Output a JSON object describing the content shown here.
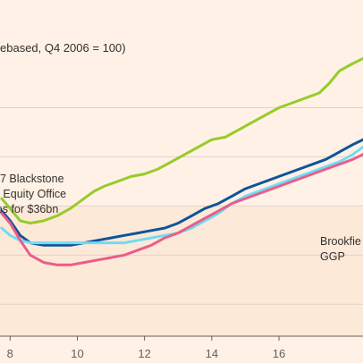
{
  "chart_data": {
    "type": "line",
    "subtitle": "ebased, Q4 2006 = 100)",
    "x_ticks": [
      10,
      12,
      14,
      16
    ],
    "x_ticks_partial": [
      8
    ],
    "xlim": [
      7.7,
      18.5
    ],
    "ylim": [
      47,
      162
    ],
    "grid": true,
    "y_gridlines": [
      60,
      80,
      100,
      120,
      140
    ],
    "shaded_band": {
      "from": 47,
      "to": 100,
      "color": "#fde9d8"
    },
    "annotations": [
      {
        "lines": [
          "07 Blackstone",
          "e Equity Office",
          "ies for $36bn"
        ]
      },
      {
        "lines": [
          "Brookfie",
          "GGP"
        ]
      }
    ],
    "series": [
      {
        "color": "#96cc28",
        "x": [
          7.75,
          8,
          8.3,
          8.6,
          9,
          9.4,
          9.8,
          10.2,
          10.5,
          10.8,
          11.2,
          11.6,
          12,
          12.4,
          12.8,
          13.2,
          13.6,
          14,
          14.4,
          14.8,
          15.2,
          15.6,
          16,
          16.4,
          16.8,
          17.2,
          17.5,
          17.8,
          18.2,
          18.5
        ],
        "y": [
          103,
          99,
          94,
          93,
          94,
          96,
          99,
          103,
          106,
          108,
          110,
          112,
          113,
          115,
          118,
          121,
          124,
          127,
          128,
          131,
          134,
          137,
          140,
          142,
          144,
          146,
          150,
          155,
          158,
          160
        ]
      },
      {
        "color": "#0f5499",
        "x": [
          7.75,
          8,
          8.3,
          8.6,
          9,
          9.4,
          9.8,
          10.2,
          10.6,
          11,
          11.4,
          11.8,
          12.2,
          12.6,
          13,
          13.4,
          13.8,
          14.2,
          14.6,
          15,
          15.4,
          15.8,
          16.2,
          16.6,
          17,
          17.4,
          17.8,
          18.2,
          18.5
        ],
        "y": [
          98,
          94,
          88,
          85,
          84,
          84,
          84,
          85,
          86,
          87,
          88,
          89,
          90,
          91,
          93,
          96,
          99,
          101,
          104,
          107,
          109,
          111,
          113,
          115,
          117,
          119,
          122,
          125,
          127
        ]
      },
      {
        "color": "#6fdcf2",
        "x": [
          7.75,
          8,
          8.3,
          8.6,
          9,
          9.4,
          9.8,
          10.2,
          10.6,
          11,
          11.4,
          11.8,
          12.2,
          12.6,
          13,
          13.4,
          13.8,
          14.2,
          14.6,
          15,
          15.4,
          15.8,
          16.2,
          16.6,
          17,
          17.4,
          17.8,
          18.2,
          18.5
        ],
        "y": [
          91,
          88,
          86,
          85,
          85,
          85,
          85,
          85,
          85,
          85,
          85,
          86,
          87,
          88,
          89,
          91,
          94,
          97,
          101,
          104,
          106,
          108,
          110,
          112,
          114,
          116,
          118,
          121,
          124
        ]
      },
      {
        "color": "#e95d8c",
        "x": [
          7.75,
          8,
          8.3,
          8.6,
          9,
          9.4,
          9.8,
          10.2,
          10.6,
          11,
          11.4,
          11.8,
          12.2,
          12.6,
          13,
          13.4,
          13.8,
          14.2,
          14.6,
          15,
          15.4,
          15.8,
          16.2,
          16.6,
          17,
          17.4,
          17.8,
          18.2,
          18.5
        ],
        "y": [
          97,
          93,
          86,
          80,
          77,
          76,
          76,
          77,
          78,
          79,
          80,
          82,
          84,
          87,
          89,
          92,
          95,
          98,
          101,
          103,
          105,
          107,
          109,
          111,
          113,
          115,
          117,
          119,
          121
        ]
      }
    ]
  }
}
